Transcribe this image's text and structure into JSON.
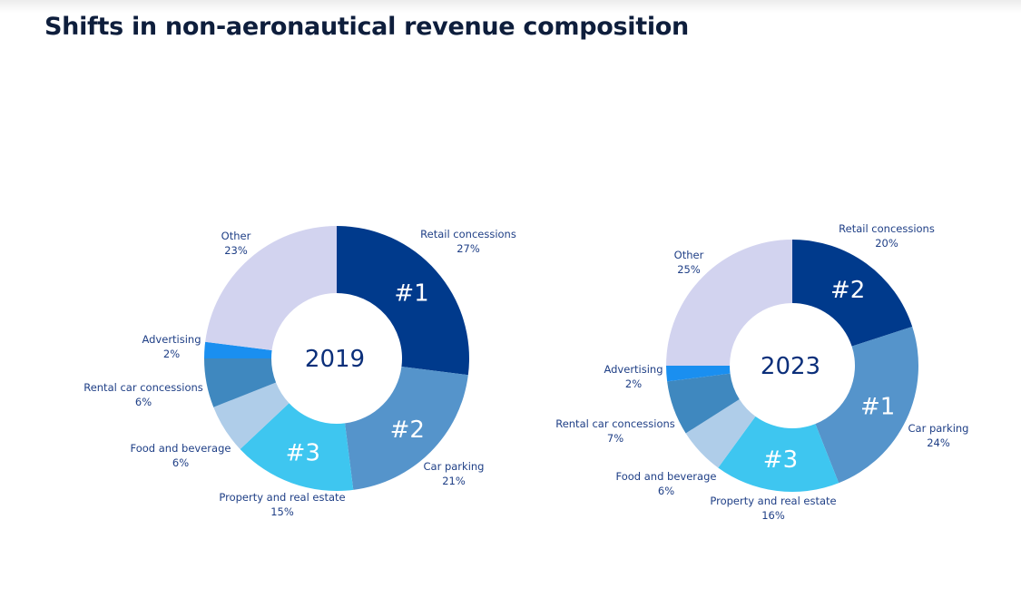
{
  "title": "Shifts in non-aeronautical revenue composition",
  "colors": {
    "Retail concessions": "#003a8c",
    "Car parking": "#5594cb",
    "Property and real estate": "#3ec6f0",
    "Food and beverage": "#afcde9",
    "Rental car concessions": "#3f88bf",
    "Advertising": "#1a8ff0",
    "Other": "#d2d3ef"
  },
  "chart_data": [
    {
      "type": "pie",
      "subtype": "donut",
      "center_label": "2019",
      "categories": [
        "Retail concessions",
        "Car parking",
        "Property and real estate",
        "Food and beverage",
        "Rental car concessions",
        "Advertising",
        "Other"
      ],
      "values": [
        27,
        21,
        15,
        6,
        6,
        2,
        23
      ],
      "value_labels": [
        "27%",
        "21%",
        "15%",
        "6%",
        "6%",
        "2%",
        "23%"
      ],
      "rank_labels": [
        "#1",
        "#2",
        "#3",
        "",
        "",
        "",
        ""
      ],
      "unit": "%"
    },
    {
      "type": "pie",
      "subtype": "donut",
      "center_label": "2023",
      "categories": [
        "Retail concessions",
        "Car parking",
        "Property and real estate",
        "Food and beverage",
        "Rental car concessions",
        "Advertising",
        "Other"
      ],
      "values": [
        20,
        24,
        16,
        6,
        7,
        2,
        25
      ],
      "value_labels": [
        "20%",
        "24%",
        "16%",
        "6%",
        "7%",
        "2%",
        "25%"
      ],
      "rank_labels": [
        "#2",
        "#1",
        "#3",
        "",
        "",
        "",
        ""
      ],
      "unit": "%"
    }
  ]
}
